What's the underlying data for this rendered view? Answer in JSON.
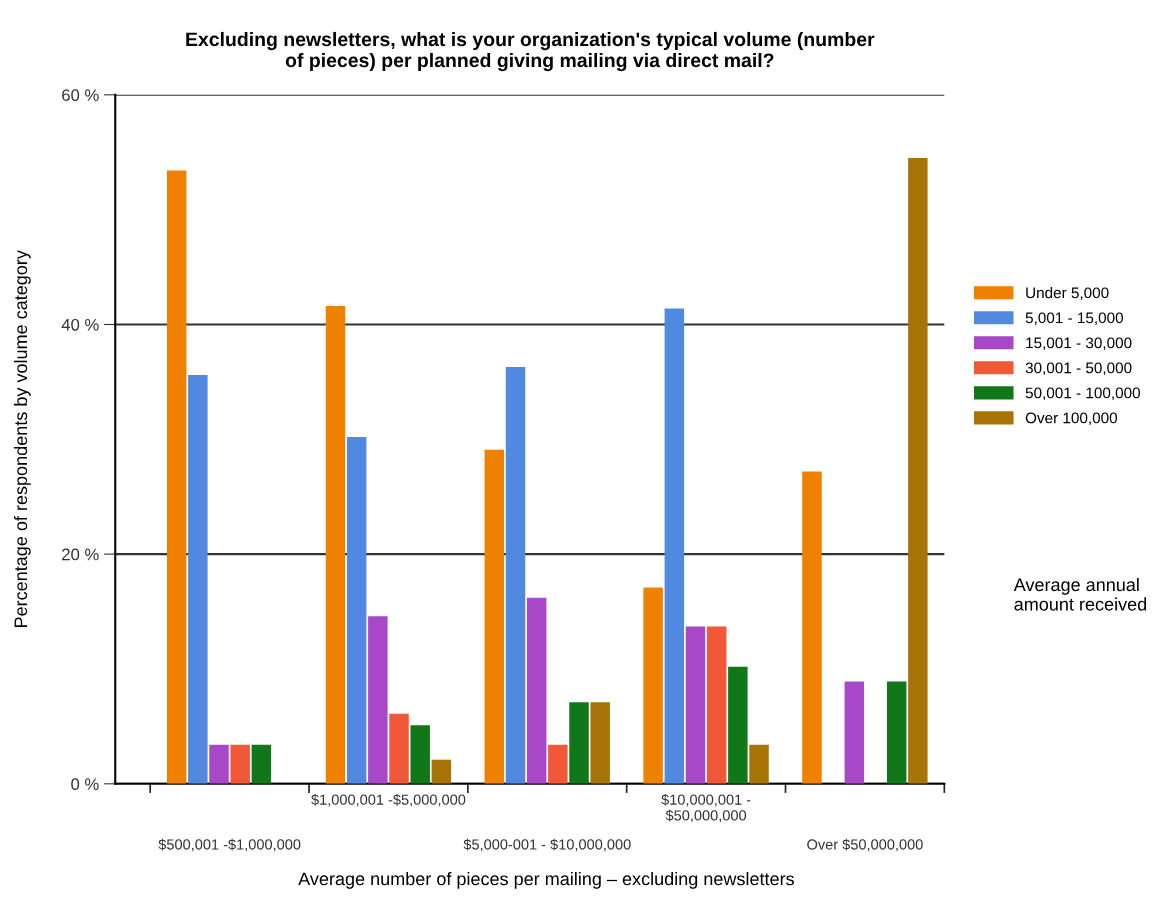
{
  "chart_data": {
    "type": "bar",
    "title": "Excluding newsletters, what is your organization's typical volume (number\nof pieces) per planned giving mailing via direct mail?",
    "xlabel": "Average number of pieces per mailing – excluding newsletters",
    "ylabel": "Percentage of respondents by volume category",
    "legend_title": "Average annual\namount received",
    "categories": [
      "$500,001 -$1,000,000",
      "$1,000,001 -$5,000,000",
      "$5,000-001 - $10,000,000",
      "$10,000,001 -\n$50,000,000",
      "Over $50,000,000"
    ],
    "series": [
      {
        "name": "Under 5,000",
        "color": "#f08000",
        "values": [
          53.4,
          41.6,
          29.1,
          17.1,
          27.2
        ]
      },
      {
        "name": "5,001 - 15,000",
        "color": "#5289e0",
        "values": [
          35.6,
          30.2,
          36.3,
          41.4,
          0
        ]
      },
      {
        "name": "15,001 - 30,000",
        "color": "#a848c8",
        "values": [
          3.4,
          14.6,
          16.2,
          13.7,
          8.9
        ]
      },
      {
        "name": "30,001 - 50,000",
        "color": "#f05838",
        "values": [
          3.4,
          6.1,
          3.4,
          13.7,
          0
        ]
      },
      {
        "name": "50,001 - 100,000",
        "color": "#107818",
        "values": [
          3.4,
          5.1,
          7.1,
          10.2,
          8.9
        ]
      },
      {
        "name": "Over 100,000",
        "color": "#a87408",
        "values": [
          0,
          2.1,
          7.1,
          3.4,
          54.5
        ]
      }
    ],
    "ylim": [
      0,
      60
    ],
    "yticks": [
      {
        "value": 0,
        "label": "0 %"
      },
      {
        "value": 20,
        "label": "20 %"
      },
      {
        "value": 40,
        "label": "40 %"
      },
      {
        "value": 60,
        "label": "60 %"
      }
    ],
    "grid": "y",
    "legend": "right"
  }
}
